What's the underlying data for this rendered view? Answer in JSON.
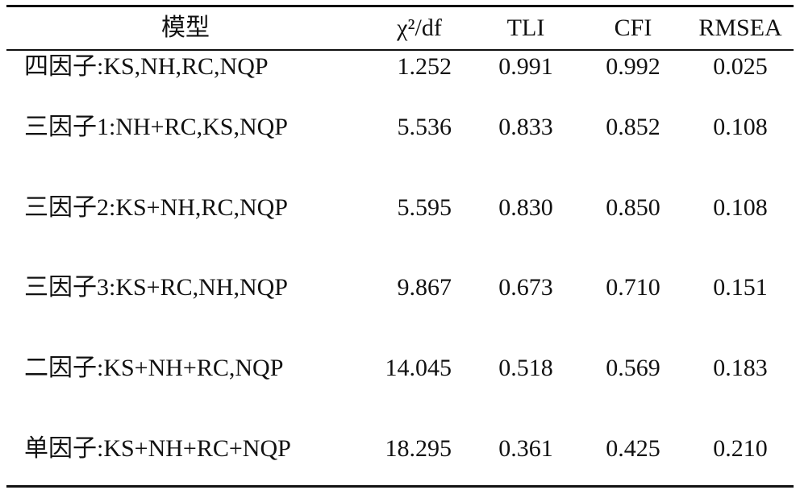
{
  "table": {
    "headers": [
      "模型",
      "χ²/df",
      "TLI",
      "CFI",
      "RMSEA"
    ],
    "rows": [
      [
        "四因子:KS,NH,RC,NQP",
        "1.252",
        "0.991",
        "0.992",
        "0.025"
      ],
      [
        "三因子1:NH+RC,KS,NQP",
        "5.536",
        "0.833",
        "0.852",
        "0.108"
      ],
      [
        "三因子2:KS+NH,RC,NQP",
        "5.595",
        "0.830",
        "0.850",
        "0.108"
      ],
      [
        "三因子3:KS+RC,NH,NQP",
        "9.867",
        "0.673",
        "0.710",
        "0.151"
      ],
      [
        "二因子:KS+NH+RC,NQP",
        "14.045",
        "0.518",
        "0.569",
        "0.183"
      ],
      [
        "单因子:KS+NH+RC+NQP",
        "18.295",
        "0.361",
        "0.425",
        "0.210"
      ]
    ]
  }
}
